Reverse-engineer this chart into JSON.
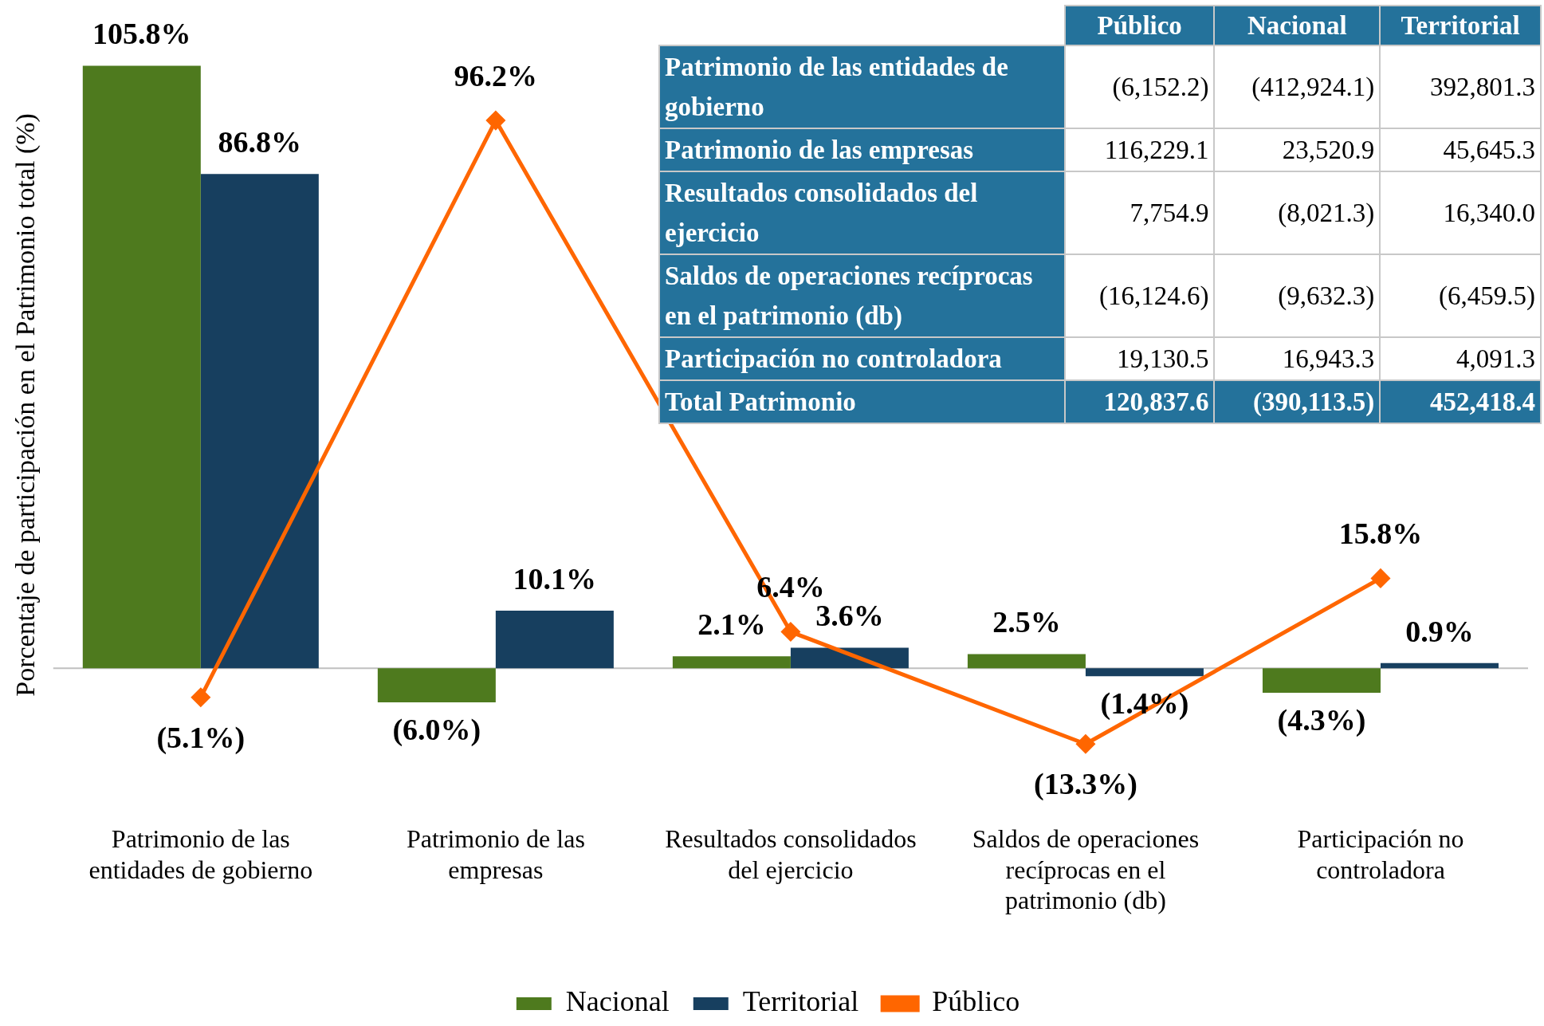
{
  "chart_data": [
    {
      "type": "bar",
      "ylabel": "Porcentaje de participación en el Patrimonio total (%)",
      "categories": [
        "Patrimonio de las entidades de gobierno",
        "Patrimonio de las empresas",
        "Resultados consolidados del ejercicio",
        "Saldos de operaciones recíprocas en el patrimonio (db)",
        "Participación no controladora"
      ],
      "series": [
        {
          "name": "Nacional",
          "type": "bar",
          "color": "#4e7a1e",
          "values": [
            105.8,
            -6.0,
            2.1,
            2.5,
            -4.3
          ],
          "value_labels": [
            "105.8%",
            "(6.0%)",
            "2.1%",
            "2.5%",
            "(4.3%)"
          ]
        },
        {
          "name": "Territorial",
          "type": "bar",
          "color": "#173f5f",
          "values": [
            86.8,
            10.1,
            3.6,
            -1.4,
            0.9
          ],
          "value_labels": [
            "86.8%",
            "10.1%",
            "3.6%",
            "(1.4%)",
            "0.9%"
          ]
        },
        {
          "name": "Público",
          "type": "line",
          "color": "#ff6600",
          "marker": "diamond",
          "values": [
            -5.1,
            96.2,
            6.4,
            -13.3,
            15.8
          ],
          "value_labels": [
            "(5.1%)",
            "96.2%",
            "6.4%",
            "(13.3%)",
            "15.8%"
          ]
        }
      ],
      "legend": "bottom",
      "grid": false
    },
    {
      "type": "other",
      "categories": [
        "Público",
        "Nacional",
        "Territorial"
      ],
      "y_categories": [
        "Patrimonio de las entidades de gobierno",
        "Patrimonio de las empresas",
        "Resultados consolidados del ejercicio",
        "Saldos de operaciones recíprocas en el patrimonio (db)",
        "Participación no controladora",
        "Total Patrimonio"
      ],
      "cell_labels": [
        [
          "(6,152.2)",
          "(412,924.1)",
          "392,801.3"
        ],
        [
          "116,229.1",
          "23,520.9",
          "45,645.3"
        ],
        [
          "7,754.9",
          "(8,021.3)",
          "16,340.0"
        ],
        [
          "(16,124.6)",
          "(9,632.3)",
          "(6,459.5)"
        ],
        [
          "19,130.5",
          "16,943.3",
          "4,091.3"
        ],
        [
          "120,837.6",
          "(390,113.5)",
          "452,418.4"
        ]
      ]
    }
  ]
}
